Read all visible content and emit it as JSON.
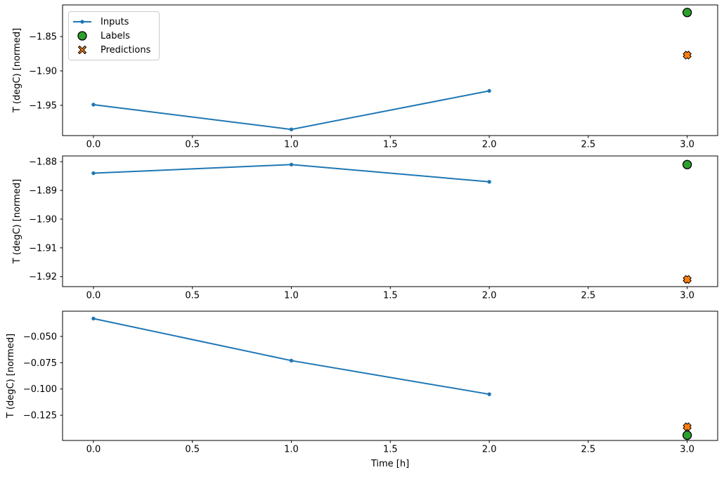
{
  "figure": {
    "background": "#ffffff"
  },
  "legend": {
    "items": [
      {
        "label": "Inputs",
        "marker": "line-dot",
        "color": "#1f77b4"
      },
      {
        "label": "Labels",
        "marker": "circle",
        "color": "#2ca02c"
      },
      {
        "label": "Predictions",
        "marker": "x",
        "color": "#ff7f0e"
      }
    ]
  },
  "chart_data": {
    "type": "line",
    "title": "",
    "xlabel": "Time [h]",
    "ylabel": "T (degC) [normed]",
    "grid": false,
    "legend_position": "upper left",
    "x_tick_values": [
      0.0,
      0.5,
      1.0,
      1.5,
      2.0,
      2.5,
      3.0
    ],
    "x_tick_labels": [
      "0.0",
      "0.5",
      "1.0",
      "1.5",
      "2.0",
      "2.5",
      "3.0"
    ],
    "xlim": [
      -0.156,
      3.154
    ],
    "colors": {
      "inputs": "#1f77b4",
      "labels": "#2ca02c",
      "predictions": "#ff7f0e",
      "marker_edge": "#000000"
    },
    "subplots": [
      {
        "ylim": [
          -1.994,
          -1.804
        ],
        "y_tick_values": [
          -1.85,
          -1.9,
          -1.95
        ],
        "y_tick_labels": [
          "−1.85",
          "−1.90",
          "−1.95"
        ],
        "series": [
          {
            "name": "Inputs",
            "type": "line",
            "x": [
              0,
              1,
              2
            ],
            "y": [
              -1.949,
              -1.985,
              -1.929
            ]
          },
          {
            "name": "Labels",
            "type": "scatter-circle",
            "x": [
              3
            ],
            "y": [
              -1.815
            ]
          },
          {
            "name": "Predictions",
            "type": "scatter-x",
            "x": [
              3
            ],
            "y": [
              -1.877
            ]
          }
        ]
      },
      {
        "ylim": [
          -1.9235,
          -1.878
        ],
        "y_tick_values": [
          -1.88,
          -1.89,
          -1.9,
          -1.91,
          -1.92
        ],
        "y_tick_labels": [
          "−1.88",
          "−1.89",
          "−1.90",
          "−1.91",
          "−1.92"
        ],
        "series": [
          {
            "name": "Inputs",
            "type": "line",
            "x": [
              0,
              1,
              2
            ],
            "y": [
              -1.884,
              -1.881,
              -1.887
            ]
          },
          {
            "name": "Labels",
            "type": "scatter-circle",
            "x": [
              3
            ],
            "y": [
              -1.881
            ]
          },
          {
            "name": "Predictions",
            "type": "scatter-x",
            "x": [
              3
            ],
            "y": [
              -1.921
            ]
          }
        ]
      },
      {
        "ylim": [
          -0.149,
          -0.026
        ],
        "y_tick_values": [
          -0.05,
          -0.075,
          -0.1,
          -0.125
        ],
        "y_tick_labels": [
          "−0.050",
          "−0.075",
          "−0.100",
          "−0.125"
        ],
        "series": [
          {
            "name": "Inputs",
            "type": "line",
            "x": [
              0,
              1,
              2
            ],
            "y": [
              -0.033,
              -0.073,
              -0.105
            ]
          },
          {
            "name": "Labels",
            "type": "scatter-circle",
            "x": [
              3
            ],
            "y": [
              -0.144
            ]
          },
          {
            "name": "Predictions",
            "type": "scatter-x",
            "x": [
              3
            ],
            "y": [
              -0.136
            ]
          }
        ]
      }
    ]
  }
}
